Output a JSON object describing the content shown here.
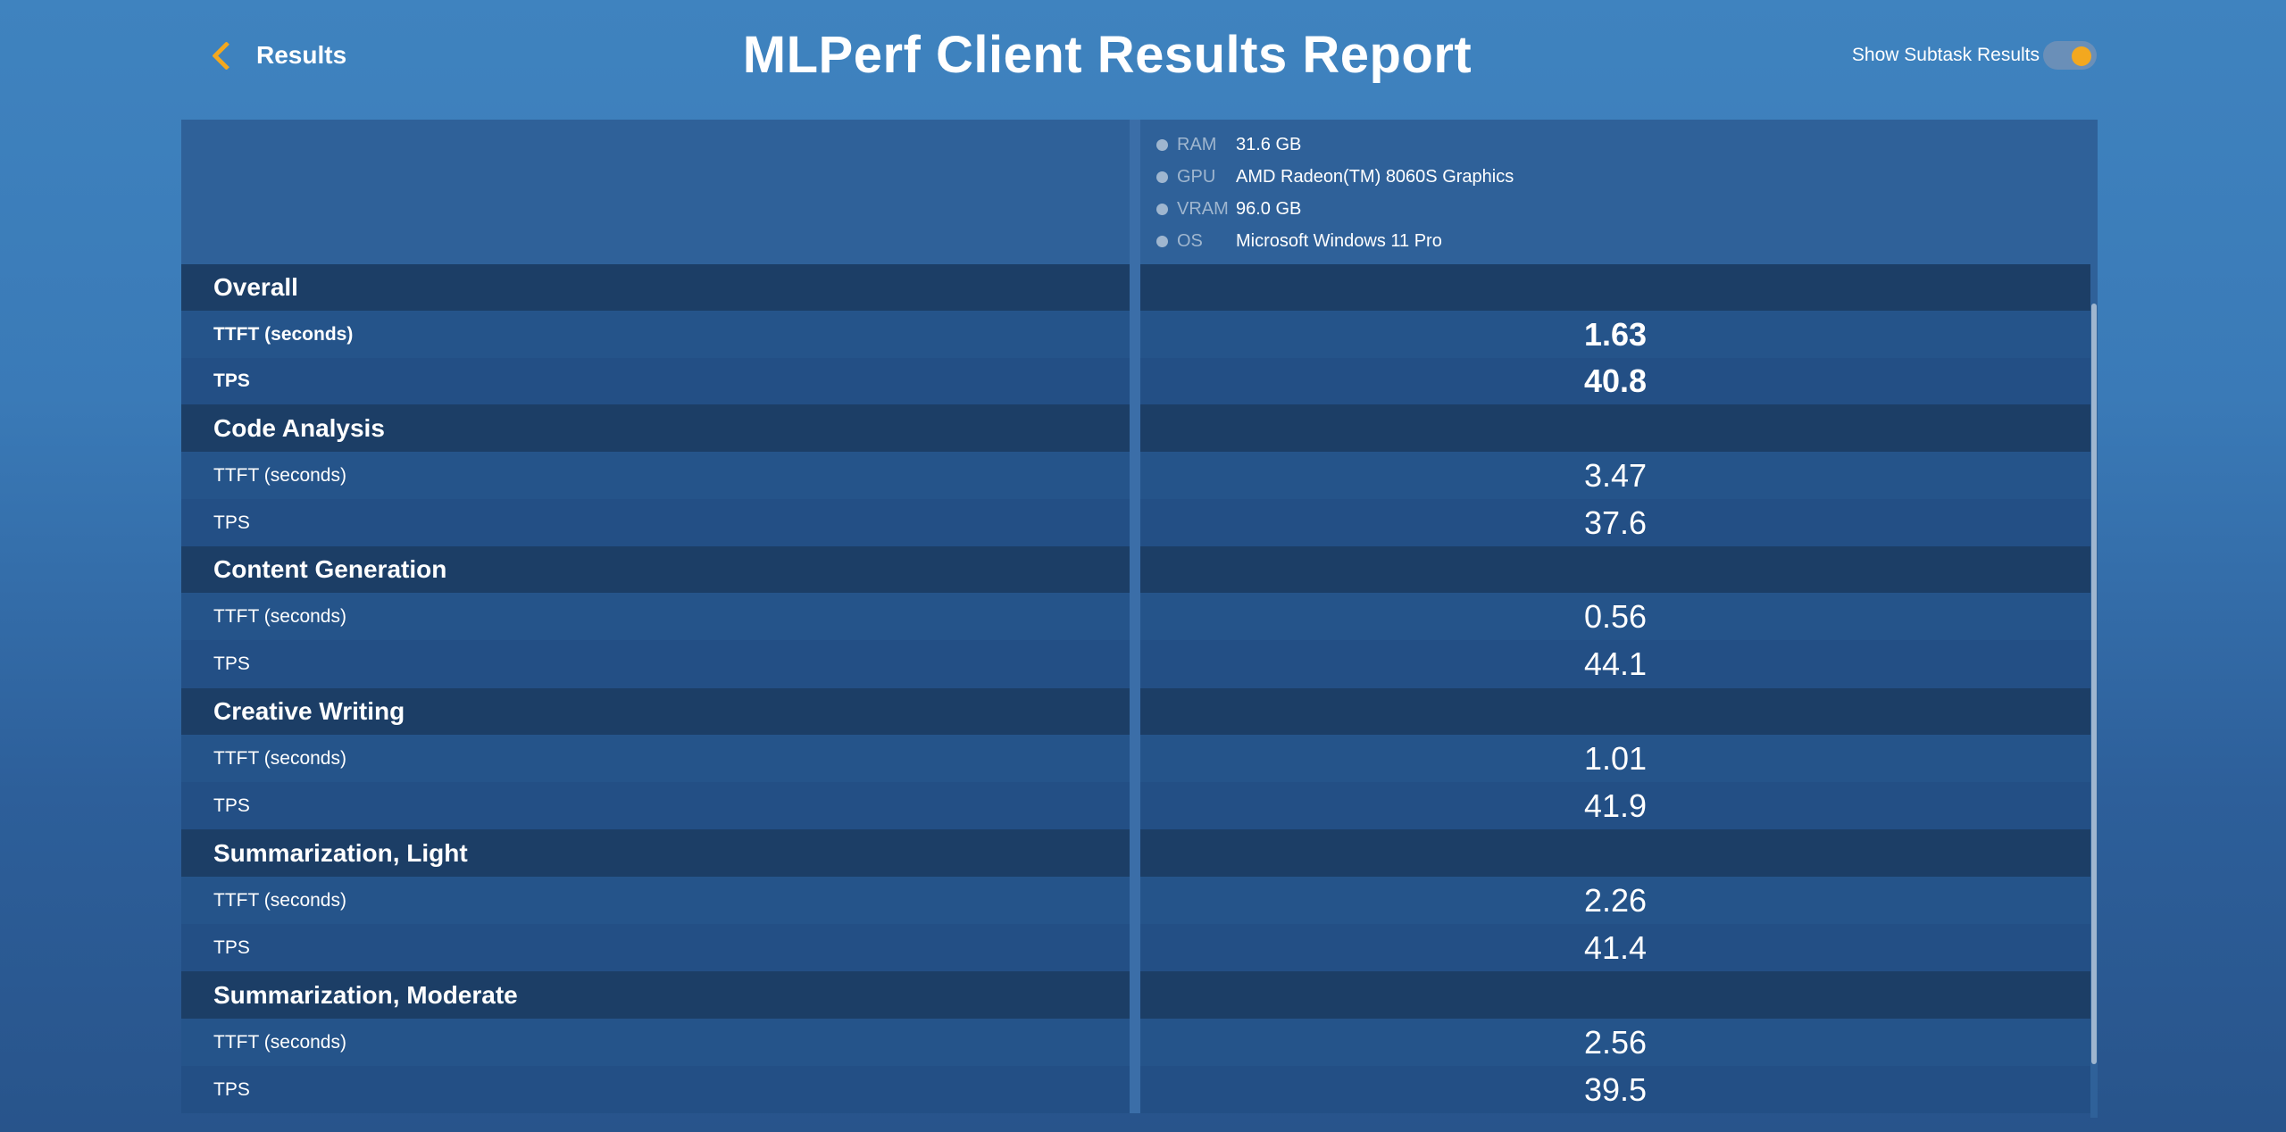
{
  "header": {
    "back_label": "Results",
    "title": "MLPerf Client Results Report",
    "toggle_label": "Show Subtask Results"
  },
  "system": [
    {
      "key": "RAM",
      "value": "31.6 GB"
    },
    {
      "key": "GPU",
      "value": "AMD Radeon(TM) 8060S Graphics"
    },
    {
      "key": "VRAM",
      "value": "96.0 GB"
    },
    {
      "key": "OS",
      "value": "Microsoft Windows 11 Pro"
    }
  ],
  "sections": [
    {
      "name": "Overall",
      "ttft_label": "TTFT (seconds)",
      "ttft": "1.63",
      "tps_label": "TPS",
      "tps": "40.8"
    },
    {
      "name": "Code Analysis",
      "ttft_label": "TTFT (seconds)",
      "ttft": "3.47",
      "tps_label": "TPS",
      "tps": "37.6"
    },
    {
      "name": "Content Generation",
      "ttft_label": "TTFT (seconds)",
      "ttft": "0.56",
      "tps_label": "TPS",
      "tps": "44.1"
    },
    {
      "name": "Creative Writing",
      "ttft_label": "TTFT (seconds)",
      "ttft": "1.01",
      "tps_label": "TPS",
      "tps": "41.9"
    },
    {
      "name": "Summarization, Light",
      "ttft_label": "TTFT (seconds)",
      "ttft": "2.26",
      "tps_label": "TPS",
      "tps": "41.4"
    },
    {
      "name": "Summarization, Moderate",
      "ttft_label": "TTFT (seconds)",
      "ttft": "2.56",
      "tps_label": "TPS",
      "tps": "39.5"
    }
  ]
}
